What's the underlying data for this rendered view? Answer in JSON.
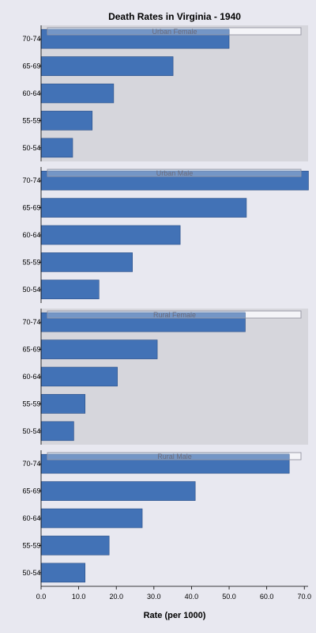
{
  "chart_data": {
    "type": "bar",
    "orientation": "horizontal",
    "title": "Death Rates in Virginia - 1940",
    "xlabel": "Rate (per 1000)",
    "xlim": [
      0,
      71
    ],
    "xticks": [
      "0.0",
      "10.0",
      "20.0",
      "30.0",
      "40.0",
      "50.0",
      "60.0",
      "70.0"
    ],
    "categories": [
      "50-54",
      "55-59",
      "60-64",
      "65-69",
      "70-74"
    ],
    "colors": {
      "bar": "#4272b6",
      "bar_edge": "#2b4f86",
      "panel_shaded": "#d6d6dc",
      "panel_plain": "#e8e8f0",
      "strip_fill": "#f4f4f8",
      "strip_highlight": "#9fb4d4"
    },
    "panels": [
      {
        "name": "Urban Female",
        "values": [
          8.4,
          13.6,
          19.3,
          35.1,
          50.0
        ],
        "shaded": true
      },
      {
        "name": "Urban Male",
        "values": [
          15.4,
          24.3,
          37.0,
          54.6,
          71.1
        ],
        "shaded": false
      },
      {
        "name": "Rural Female",
        "values": [
          8.7,
          11.7,
          20.3,
          30.9,
          54.3
        ],
        "shaded": true
      },
      {
        "name": "Rural Male",
        "values": [
          11.7,
          18.1,
          26.9,
          41.0,
          66.0
        ],
        "shaded": false
      }
    ]
  }
}
